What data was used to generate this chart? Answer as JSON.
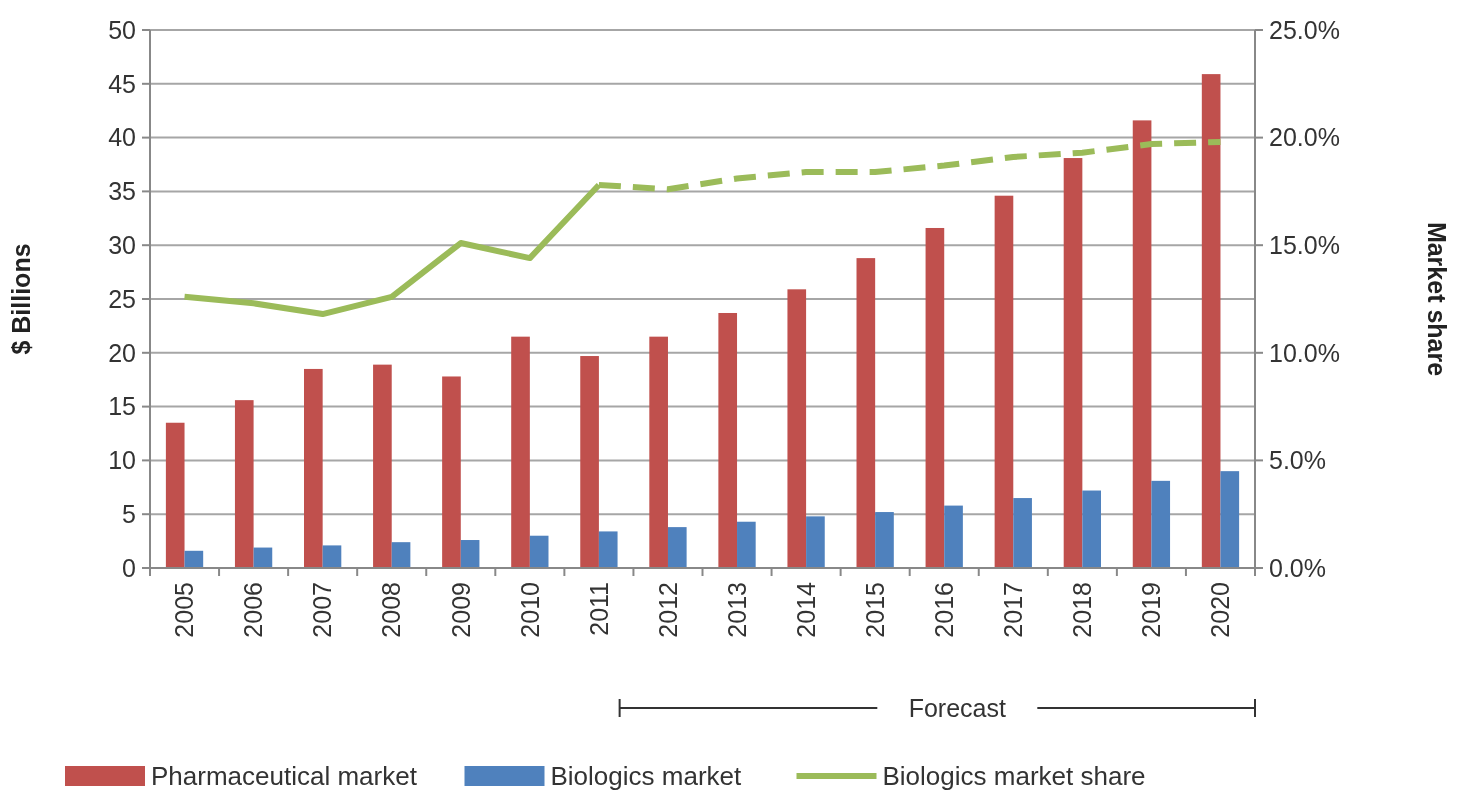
{
  "chart_data": {
    "type": "bar",
    "categories": [
      "2005",
      "2006",
      "2007",
      "2008",
      "2009",
      "2010",
      "2011",
      "2012",
      "2013",
      "2014",
      "2015",
      "2016",
      "2017",
      "2018",
      "2019",
      "2020"
    ],
    "series": [
      {
        "name": "Pharmaceutical market",
        "color": "#c0504d",
        "values": [
          13.5,
          15.6,
          18.5,
          18.9,
          17.8,
          21.5,
          19.7,
          21.5,
          23.7,
          25.9,
          28.8,
          31.6,
          34.6,
          38.1,
          41.6,
          45.9
        ]
      },
      {
        "name": "Biologics market",
        "color": "#4f81bd",
        "values": [
          1.6,
          1.9,
          2.1,
          2.4,
          2.6,
          3.0,
          3.4,
          3.8,
          4.3,
          4.8,
          5.2,
          5.8,
          6.5,
          7.2,
          8.1,
          9.0
        ]
      },
      {
        "name": "Biologics market share",
        "type": "line",
        "axis": "y2",
        "line_style": "solid",
        "color": "#9bbb59",
        "values": [
          12.6,
          12.3,
          11.8,
          12.6,
          15.1,
          14.4,
          17.8,
          null,
          null,
          null,
          null,
          null,
          null,
          null,
          null,
          null
        ]
      },
      {
        "type": "line",
        "axis": "y2",
        "line_style": "dashed",
        "color": "#9bbb59",
        "values": [
          null,
          null,
          null,
          null,
          null,
          null,
          17.8,
          17.6,
          18.1,
          18.4,
          18.4,
          18.7,
          19.1,
          19.3,
          19.7,
          19.8
        ]
      }
    ],
    "ylabel": "$ Billions",
    "y2label": "Market share",
    "ylim": [
      0,
      50
    ],
    "yticks": [
      0,
      5,
      10,
      15,
      20,
      25,
      30,
      35,
      40,
      45,
      50
    ],
    "y2lim": [
      0,
      25
    ],
    "y2ticks": [
      {
        "value": 0,
        "label": "0.0%"
      },
      {
        "value": 5,
        "label": "5.0%"
      },
      {
        "value": 10,
        "label": "10.0%"
      },
      {
        "value": 15,
        "label": "15.0%"
      },
      {
        "value": 20,
        "label": "20.0%"
      },
      {
        "value": 25,
        "label": "25.0%"
      }
    ],
    "annotations": [
      "Forecast"
    ],
    "grid": "y",
    "legend": "bottom"
  }
}
